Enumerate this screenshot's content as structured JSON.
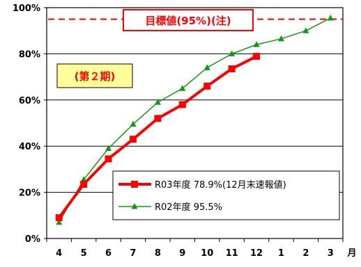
{
  "chart_data": {
    "type": "line",
    "categories": [
      "4",
      "5",
      "6",
      "7",
      "8",
      "9",
      "10",
      "11",
      "12",
      "1",
      "2",
      "3"
    ],
    "x_unit": "月",
    "ylim": [
      0,
      100
    ],
    "y_ticks": [
      0,
      20,
      40,
      60,
      80,
      100
    ],
    "y_tick_labels": [
      "0%",
      "20%",
      "40%",
      "60%",
      "80%",
      "100%"
    ],
    "grid": true,
    "target": {
      "value": 95,
      "label": "目標値(95%)(注)",
      "color": "#ff0000"
    },
    "period_label": "(第２期)",
    "legend_position": "bottom-right",
    "series": [
      {
        "name": "R03年度 78.9%(12月末速報値)",
        "color": "#ff0000",
        "marker": "square",
        "values": [
          9,
          23.5,
          34.5,
          43,
          52,
          58,
          66,
          73.5,
          78.9,
          null,
          null,
          null
        ]
      },
      {
        "name": "R02年度 95.5%",
        "color": "#109a10",
        "marker": "triangle",
        "values": [
          7,
          25.5,
          39,
          49.5,
          59,
          65,
          74,
          80,
          84,
          86.5,
          90,
          95.5
        ]
      }
    ]
  }
}
